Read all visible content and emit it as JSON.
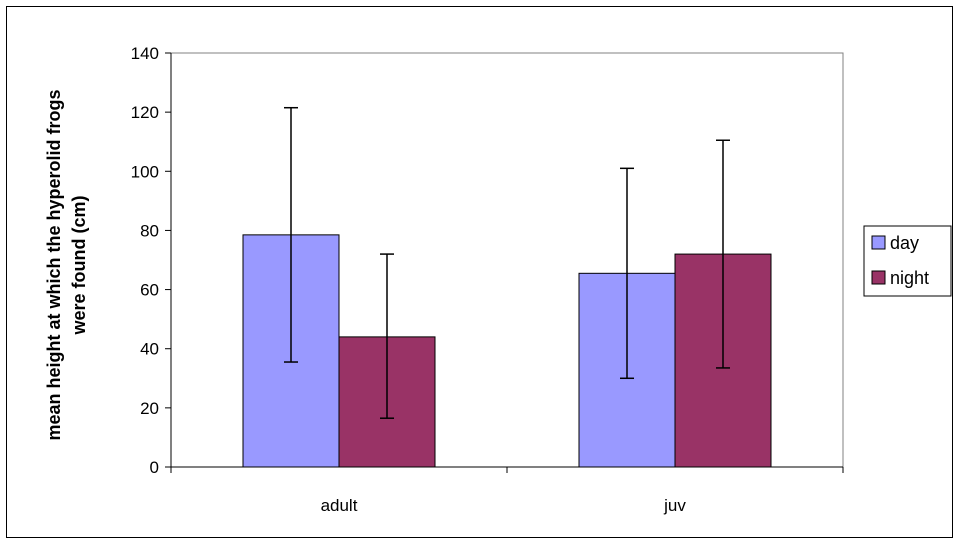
{
  "chart_data": {
    "type": "bar",
    "title": "",
    "xlabel": "",
    "ylabel": [
      "mean height at which the hyperolid frogs",
      "were found (cm)"
    ],
    "categories": [
      "adult",
      "juv"
    ],
    "ylim": [
      0,
      140
    ],
    "yticks": [
      0,
      20,
      40,
      60,
      80,
      100,
      120,
      140
    ],
    "grid": false,
    "legend_position": "right",
    "series": [
      {
        "name": "day",
        "values": [
          78.5,
          65.5
        ],
        "error_low": [
          35.5,
          30
        ],
        "error_high": [
          121.5,
          101
        ],
        "color": "#9999ff"
      },
      {
        "name": "night",
        "values": [
          44,
          72
        ],
        "error_low": [
          16.5,
          33.5
        ],
        "error_high": [
          72,
          110.5
        ],
        "color": "#993366"
      }
    ]
  }
}
